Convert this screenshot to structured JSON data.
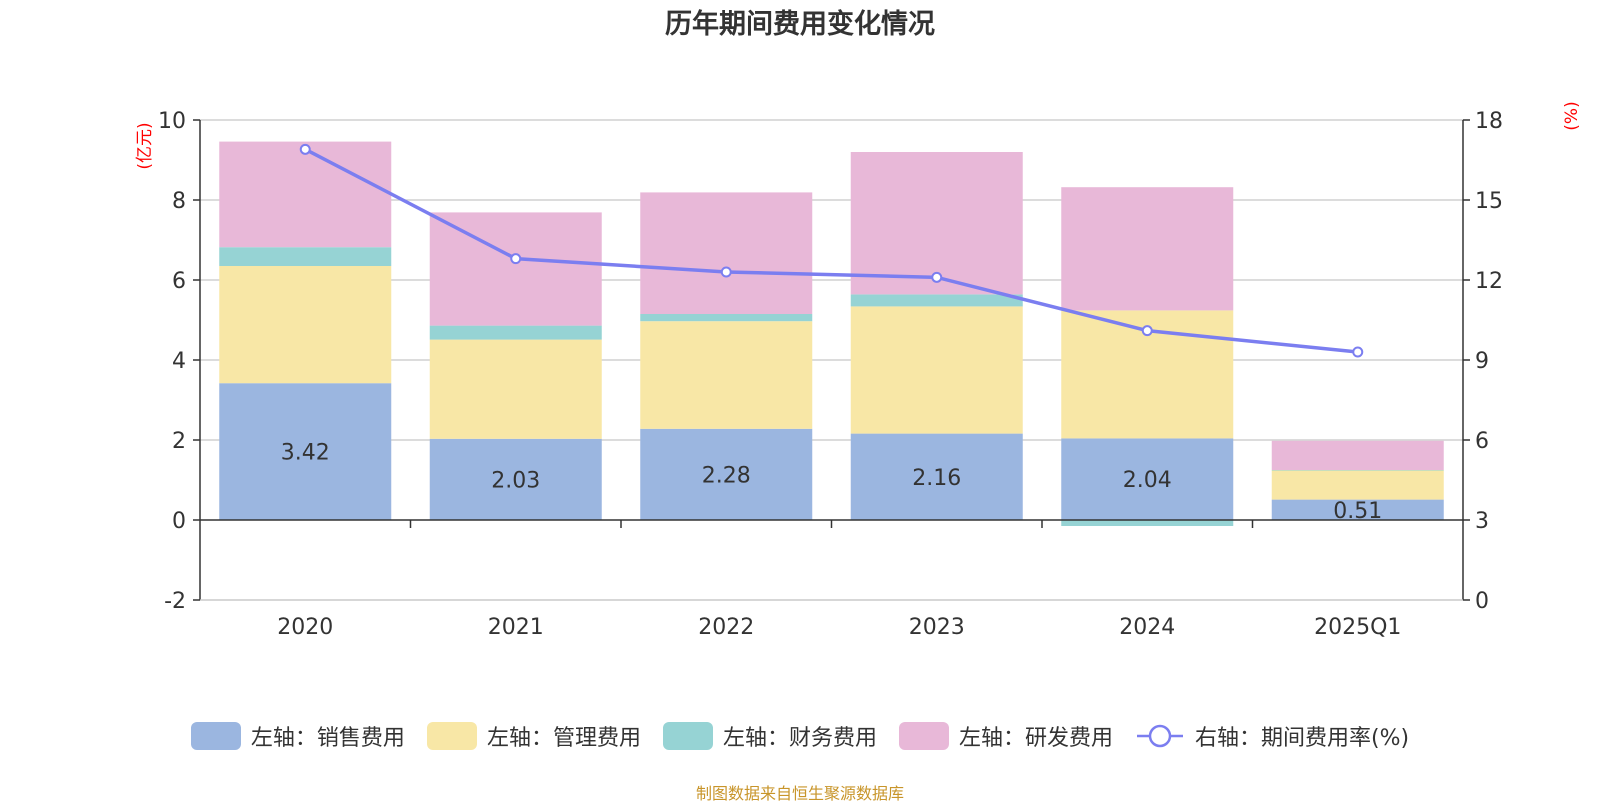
{
  "chart_data": {
    "type": "bar",
    "title": "历年期间费用变化情况",
    "categories": [
      "2020",
      "2021",
      "2022",
      "2023",
      "2024",
      "2025Q1"
    ],
    "left_axis": {
      "label": "(亿元)",
      "ylim": [
        -2,
        10
      ],
      "ticks": [
        -2,
        0,
        2,
        4,
        6,
        8,
        10
      ]
    },
    "right_axis": {
      "label": "(%)",
      "ylim": [
        0,
        18
      ],
      "ticks": [
        0,
        3,
        6,
        9,
        12,
        15,
        18
      ]
    },
    "series": [
      {
        "name": "左轴：销售费用",
        "axis": "left",
        "kind": "stacked-bar",
        "color": "#9bb6e0",
        "values": [
          3.42,
          2.03,
          2.28,
          2.16,
          2.04,
          0.51
        ],
        "labels": [
          "3.42",
          "2.03",
          "2.28",
          "2.16",
          "2.04",
          "0.51"
        ]
      },
      {
        "name": "左轴：管理费用",
        "axis": "left",
        "kind": "stacked-bar",
        "color": "#f8e7a6",
        "values": [
          2.93,
          2.48,
          2.69,
          3.18,
          3.2,
          0.73
        ]
      },
      {
        "name": "左轴：财务费用",
        "axis": "left",
        "kind": "stacked-bar",
        "color": "#96d3d4",
        "values": [
          0.47,
          0.35,
          0.18,
          0.3,
          -0.15,
          0.01
        ]
      },
      {
        "name": "左轴：研发费用",
        "axis": "left",
        "kind": "stacked-bar",
        "color": "#e8b8d8",
        "values": [
          2.64,
          2.83,
          3.04,
          3.56,
          3.08,
          0.73
        ]
      },
      {
        "name": "右轴：期间费用率(%)",
        "axis": "right",
        "kind": "line",
        "color": "#7b7ef0",
        "values": [
          16.9,
          12.8,
          12.3,
          12.1,
          10.1,
          9.3
        ]
      }
    ],
    "grid": true,
    "legend_position": "bottom-center"
  },
  "source_note": "制图数据来自恒生聚源数据库"
}
